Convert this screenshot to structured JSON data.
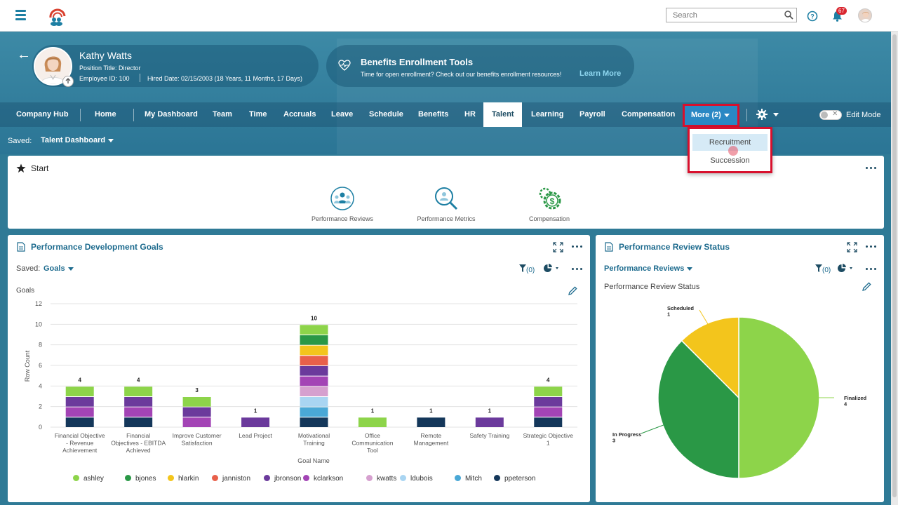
{
  "topbar": {
    "search_placeholder": "Search",
    "notification_count": "67"
  },
  "profile": {
    "name": "Kathy Watts",
    "position": "Position Title: Director",
    "employee_id": "Employee ID: 100",
    "hired": "Hired Date: 02/15/2003 (18 Years, 11 Months, 17 Days)"
  },
  "benefits": {
    "title": "Benefits Enrollment Tools",
    "subtitle": "Time for open enrollment? Check out our benefits enrollment resources!",
    "link": "Learn More"
  },
  "nav": {
    "items": [
      "Company Hub",
      "Home",
      "My Dashboard",
      "Team",
      "Time",
      "Accruals",
      "Leave",
      "Schedule",
      "Benefits",
      "HR",
      "Talent",
      "Learning",
      "Payroll",
      "Compensation"
    ],
    "active": "Talent",
    "more": "More (2)",
    "edit_mode": "Edit Mode",
    "more_menu": [
      "Recruitment",
      "Succession"
    ]
  },
  "saved": {
    "label": "Saved:",
    "value": "Talent Dashboard"
  },
  "start": {
    "title": "Start",
    "tiles": [
      "Performance Reviews",
      "Performance Metrics",
      "Compensation"
    ]
  },
  "pdg": {
    "title": "Performance Development Goals",
    "saved_label": "Saved:",
    "saved_value": "Goals",
    "filter_count": "(0)",
    "subtitle": "Goals"
  },
  "prs": {
    "title": "Performance Review Status",
    "dropdown": "Performance Reviews",
    "filter_count": "(0)",
    "subtitle": "Performance Review Status"
  },
  "chart_data": [
    {
      "type": "bar",
      "stacked": true,
      "title": "Goals",
      "xlabel": "Goal Name",
      "ylabel": "Row Count",
      "ylim": [
        0,
        12
      ],
      "yticks": [
        0,
        2,
        4,
        6,
        8,
        10,
        12
      ],
      "grid": true,
      "legend_position": "bottom",
      "categories": [
        "Financial Objective - Revenue Achievement",
        "Financial Objectives - EBITDA Achieved",
        "Improve Customer Satisfaction",
        "Lead Project",
        "Motivational Training",
        "Office Communication Tool",
        "Remote Management",
        "Safety Training",
        "Strategic Objective 1"
      ],
      "category_lines": [
        [
          "Financial Objective",
          "- Revenue",
          "Achievement"
        ],
        [
          "Financial",
          "Objectives - EBITDA",
          "Achieved"
        ],
        [
          "Improve Customer",
          "Satisfaction"
        ],
        [
          "Lead Project"
        ],
        [
          "Motivational",
          "Training"
        ],
        [
          "Office",
          "Communication",
          "Tool"
        ],
        [
          "Remote",
          "Management"
        ],
        [
          "Safety Training"
        ],
        [
          "Strategic Objective",
          "1"
        ]
      ],
      "totals": [
        4,
        4,
        3,
        1,
        10,
        1,
        1,
        1,
        4
      ],
      "series": [
        {
          "name": "ashley",
          "color": "#8dd44a",
          "values": [
            1,
            1,
            1,
            0,
            1,
            1,
            0,
            0,
            1
          ]
        },
        {
          "name": "bjones",
          "color": "#2a9846",
          "values": [
            0,
            0,
            0,
            0,
            1,
            0,
            0,
            0,
            0
          ]
        },
        {
          "name": "hlarkin",
          "color": "#f3c51c",
          "values": [
            0,
            0,
            0,
            0,
            1,
            0,
            0,
            0,
            0
          ]
        },
        {
          "name": "janniston",
          "color": "#e8604a",
          "values": [
            0,
            0,
            0,
            0,
            1,
            0,
            0,
            0,
            0
          ]
        },
        {
          "name": "jbronson",
          "color": "#6b3a9c",
          "values": [
            1,
            1,
            1,
            1,
            1,
            0,
            0,
            1,
            1
          ]
        },
        {
          "name": "kclarkson",
          "color": "#a344b5",
          "values": [
            1,
            1,
            1,
            0,
            1,
            0,
            0,
            0,
            1
          ]
        },
        {
          "name": "kwatts",
          "color": "#d6a0cf",
          "values": [
            0,
            0,
            0,
            0,
            1,
            0,
            0,
            0,
            0
          ]
        },
        {
          "name": "ldubois",
          "color": "#a9d5f2",
          "values": [
            0,
            0,
            0,
            0,
            1,
            0,
            0,
            0,
            0
          ]
        },
        {
          "name": "Mitch",
          "color": "#4aa8d6",
          "values": [
            0,
            0,
            0,
            0,
            1,
            0,
            0,
            0,
            0
          ]
        },
        {
          "name": "ppeterson",
          "color": "#14375a",
          "values": [
            1,
            1,
            0,
            0,
            1,
            0,
            1,
            0,
            1
          ]
        }
      ]
    },
    {
      "type": "pie",
      "title": "Performance Review Status",
      "slices": [
        {
          "label": "Finalized",
          "value": 4,
          "color": "#8dd44a"
        },
        {
          "label": "In Progress",
          "value": 3,
          "color": "#2a9846"
        },
        {
          "label": "Scheduled",
          "value": 1,
          "color": "#f3c51c"
        }
      ]
    }
  ]
}
